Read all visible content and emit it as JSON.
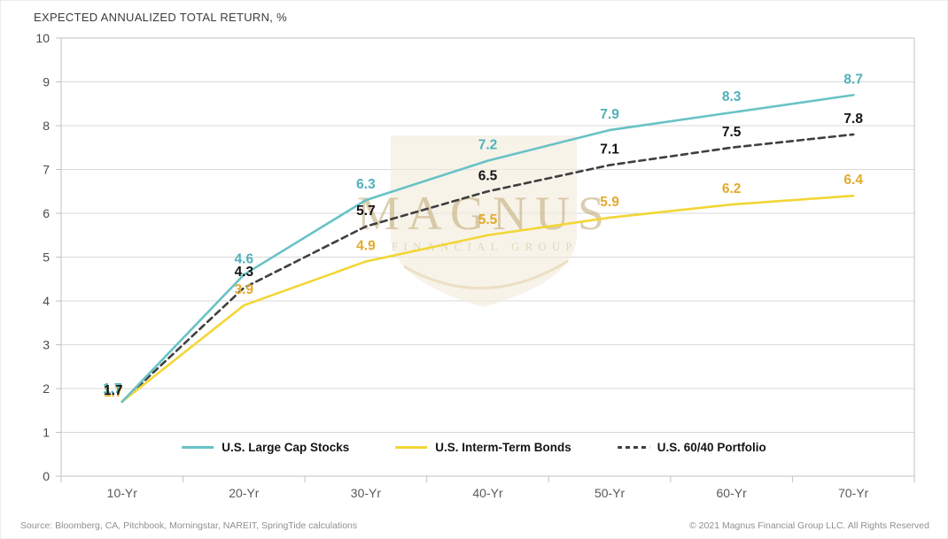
{
  "title": "EXPECTED ANNUALIZED TOTAL RETURN, %",
  "chart_data": {
    "type": "line",
    "categories": [
      "10-Yr",
      "20-Yr",
      "30-Yr",
      "40-Yr",
      "50-Yr",
      "60-Yr",
      "70-Yr"
    ],
    "series": [
      {
        "name": "U.S. Large Cap Stocks",
        "values": [
          1.7,
          4.6,
          6.3,
          7.2,
          7.9,
          8.3,
          8.7
        ],
        "color": "#68c2c6",
        "label_color": "#4fb2ba",
        "style": "solid"
      },
      {
        "name": "U.S. Interm-Term Bonds",
        "values": [
          1.7,
          3.9,
          4.9,
          5.5,
          5.9,
          6.2,
          6.4
        ],
        "color": "#f2d636",
        "label_color": "#e4aa2b",
        "style": "solid"
      },
      {
        "name": "U.S. 60/40 Portfolio",
        "values": [
          1.7,
          4.3,
          5.7,
          6.5,
          7.1,
          7.5,
          7.8
        ],
        "color": "#3f3f3f",
        "label_color": "#141414",
        "style": "dashed"
      }
    ],
    "ylim": [
      0,
      10
    ],
    "yticks": [
      0,
      1,
      2,
      3,
      4,
      5,
      6,
      7,
      8,
      9,
      10
    ],
    "grid": true,
    "legend_position": "bottom-inside",
    "xlabel": "",
    "ylabel": ""
  },
  "watermark": {
    "text": "MAGNUS",
    "subtext": "FINANCIAL GROUP"
  },
  "footer": {
    "source": "Source: Bloomberg, CA, Pitchbook, Morningstar, NAREIT, SpringTide calculations",
    "copyright": "© 2021 Magnus Financial Group LLC. All Rights Reserved"
  }
}
